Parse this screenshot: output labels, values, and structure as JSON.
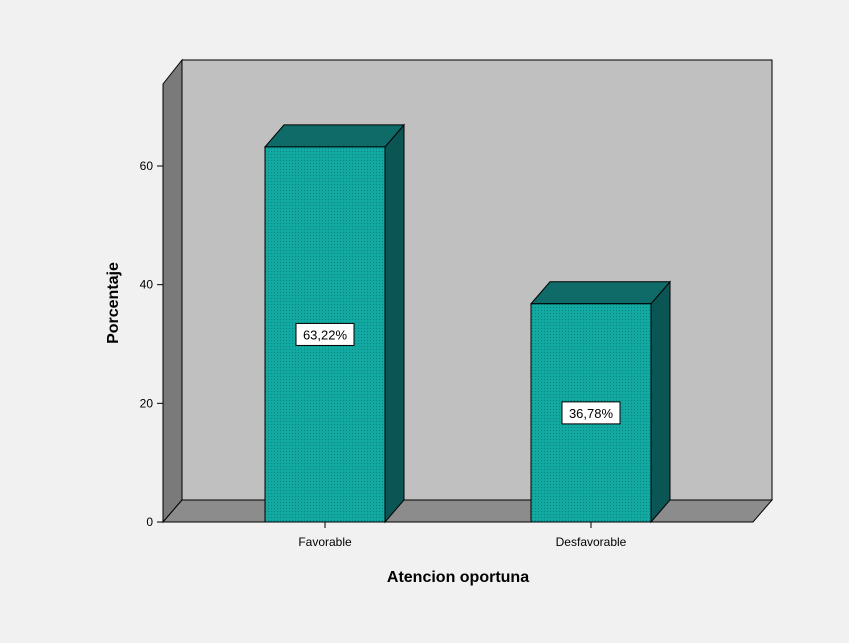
{
  "colors": {
    "background": "#f1f1f1",
    "plot_back": "#c0c0c0",
    "plot_side": "#7a7a7a",
    "plot_floor": "#8c8c8c",
    "bar_front": "#12a9a3",
    "bar_top": "#0e6b68",
    "bar_side": "#0b5654",
    "label_box": "#ffffff"
  },
  "chart_data": {
    "type": "bar",
    "style": "3d",
    "categories": [
      "Favorable",
      "Desfavorable"
    ],
    "values": [
      63.22,
      36.78
    ],
    "data_labels": [
      "63,22%",
      "36,78%"
    ],
    "yticks": [
      0,
      20,
      40,
      60
    ],
    "ytick_labels": [
      "0",
      "20",
      "40",
      "60"
    ],
    "ylim": [
      0,
      70
    ],
    "xlabel": "Atencion oportuna",
    "ylabel": "Porcentaje",
    "grid": false,
    "legend": "none"
  }
}
